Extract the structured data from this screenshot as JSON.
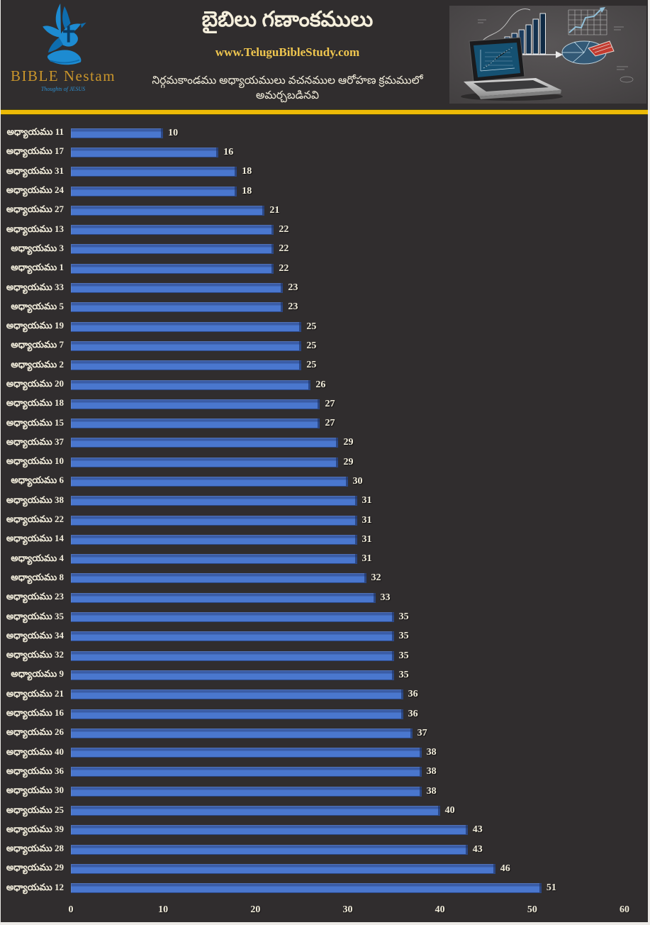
{
  "page": {
    "background": "#302D2E",
    "accent_yellow": "#EDBB07",
    "cream_text": "#F3EEDC",
    "gold_text": "#EFC64F"
  },
  "header": {
    "logo": {
      "brand": "BIBLE Nestam",
      "tagline": "Thoughts of JESUS",
      "dove_color": "#1D8BD1"
    },
    "title": "బైబిలు గణాంకములు",
    "website": "www.TeluguBibleStudy.com",
    "subtitle": "నిర్గమకాండము అధ్యాయములు వచనముల ఆరోహణ క్రమములో అమర్చబడినవి"
  },
  "chart_data": {
    "type": "bar",
    "orientation": "horizontal",
    "title": "బైబిలు గణాంకములు",
    "subtitle": "నిర్గమకాండము అధ్యాయములు వచనముల ఆరోహణ క్రమములో అమర్చబడినవి",
    "xlabel": "",
    "ylabel": "",
    "xlim": [
      0,
      60
    ],
    "x_ticks": [
      0,
      10,
      20,
      30,
      40,
      50,
      60
    ],
    "grid": false,
    "legend": false,
    "value_labels": true,
    "bar_color": "#4A77CE",
    "bar_color_dark": "#3A5CA6",
    "categories": [
      "అధ్యాయము 11",
      "అధ్యాయము 17",
      "అధ్యాయము 31",
      "అధ్యాయము 24",
      "అధ్యాయము 27",
      "అధ్యాయము 13",
      "అధ్యాయము 3",
      "అధ్యాయము 1",
      "అధ్యాయము 33",
      "అధ్యాయము 5",
      "అధ్యాయము 19",
      "అధ్యాయము 7",
      "అధ్యాయము 2",
      "అధ్యాయము 20",
      "అధ్యాయము 18",
      "అధ్యాయము 15",
      "అధ్యాయము 37",
      "అధ్యాయము 10",
      "అధ్యాయము 6",
      "అధ్యాయము 38",
      "అధ్యాయము 22",
      "అధ్యాయము 14",
      "అధ్యాయము 4",
      "అధ్యాయము 8",
      "అధ్యాయము 23",
      "అధ్యాయము 35",
      "అధ్యాయము 34",
      "అధ్యాయము 32",
      "అధ్యాయము 9",
      "అధ్యాయము 21",
      "అధ్యాయము 16",
      "అధ్యాయము 26",
      "అధ్యాయము 40",
      "అధ్యాయము 36",
      "అధ్యాయము 30",
      "అధ్యాయము 25",
      "అధ్యాయము 39",
      "అధ్యాయము 28",
      "అధ్యాయము 29",
      "అధ్యాయము 12"
    ],
    "values": [
      10,
      16,
      18,
      18,
      21,
      22,
      22,
      22,
      23,
      23,
      25,
      25,
      25,
      26,
      27,
      27,
      29,
      29,
      30,
      31,
      31,
      31,
      31,
      32,
      33,
      35,
      35,
      35,
      35,
      36,
      36,
      37,
      38,
      38,
      38,
      40,
      43,
      43,
      46,
      51
    ]
  }
}
